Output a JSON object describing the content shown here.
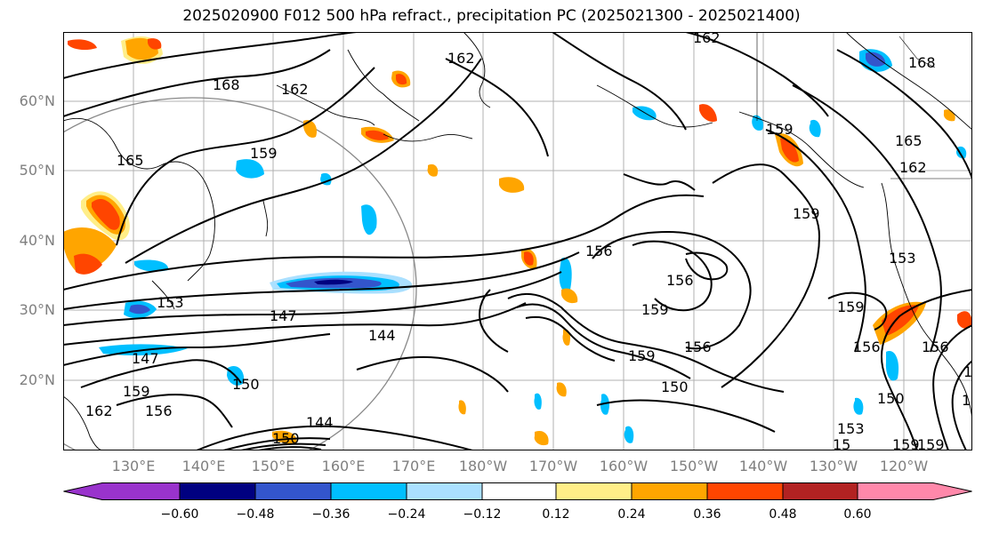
{
  "title": "2025020900 F012 500 hPa refract., precipitation PC (2025021300 - 2025021400)",
  "lat_labels": [
    "60°N",
    "50°N",
    "40°N",
    "30°N",
    "20°N"
  ],
  "lon_labels": [
    "130°E",
    "140°E",
    "150°E",
    "160°E",
    "170°E",
    "180°W",
    "170°W",
    "160°W",
    "150°W",
    "140°W",
    "130°W",
    "120°W"
  ],
  "colorbar": {
    "colors": [
      "#9933cc",
      "#000080",
      "#3355cc",
      "#00bfff",
      "#aae0ff",
      "#ffffff",
      "#ffee88",
      "#ffa500",
      "#ff4500",
      "#b22222",
      "#ff88aa"
    ],
    "ticks": [
      "−0.60",
      "−0.48",
      "−0.36",
      "−0.24",
      "−0.12",
      "0.12",
      "0.24",
      "0.36",
      "0.48",
      "0.60"
    ]
  },
  "contour_labels": [
    "168",
    "162",
    "159",
    "165",
    "162",
    "153",
    "147",
    "144",
    "147",
    "159",
    "162",
    "156",
    "150",
    "144",
    "150",
    "162",
    "168",
    "159",
    "165",
    "162",
    "159",
    "156",
    "156",
    "159",
    "159",
    "156",
    "150",
    "153",
    "159",
    "156",
    "150",
    "159",
    "156",
    "153",
    "159",
    "15",
    "156",
    "150"
  ]
}
